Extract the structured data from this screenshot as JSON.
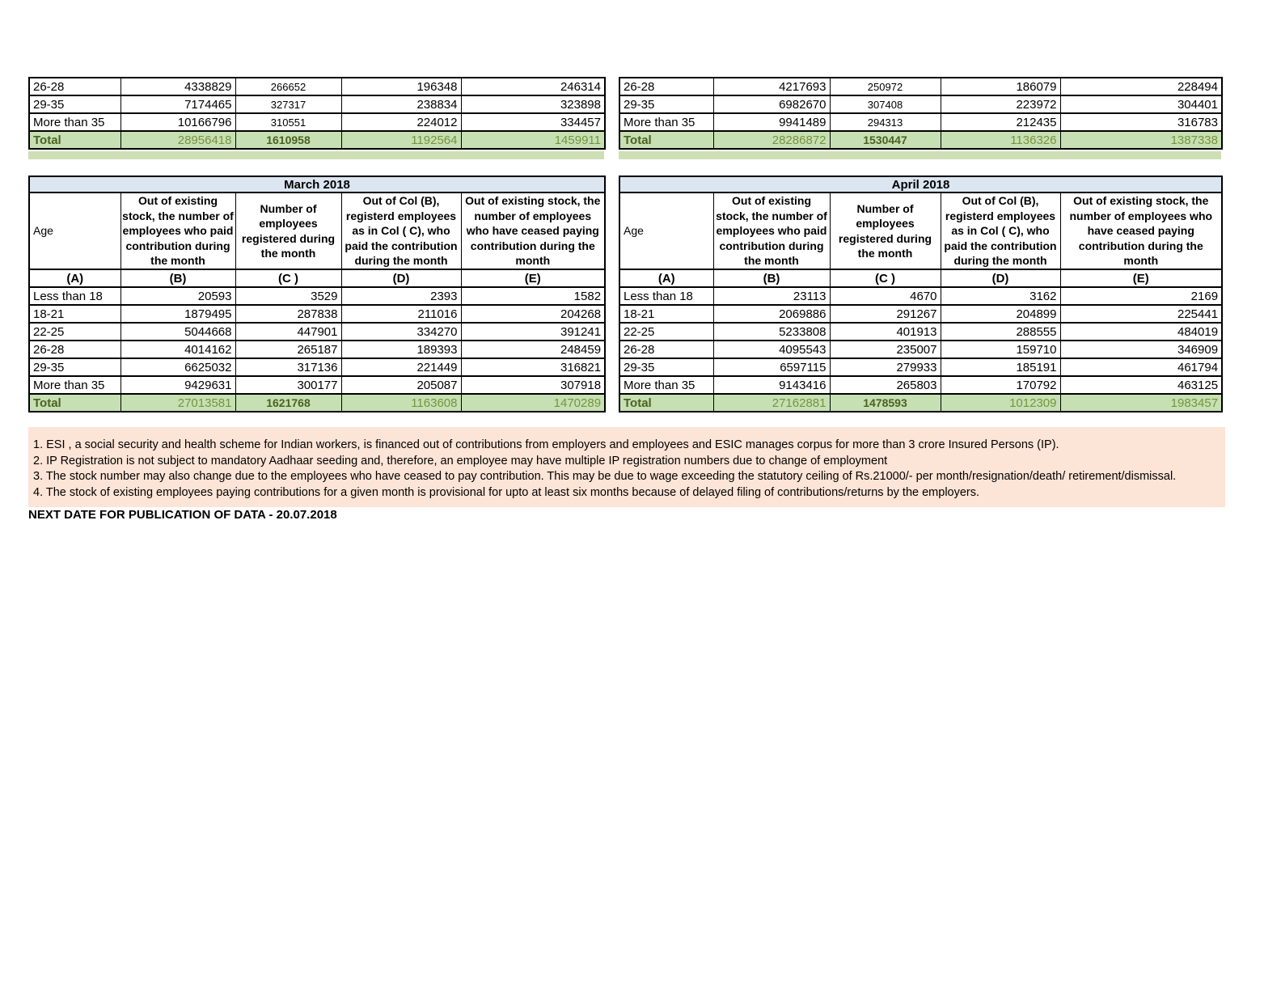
{
  "colors": {
    "title_bar_bg": "#dce6f1",
    "total_row_bg": "#c6e0b4",
    "strip_bg": "#cfdfb5",
    "notes_bg": "#fce4d6",
    "total_value_text": "#77933c",
    "total_label_text": "#4a6120",
    "border": "#000000"
  },
  "top_tables": [
    {
      "rows": [
        {
          "label": "26-28",
          "b": "4338829",
          "c": "266652",
          "d": "196348",
          "e": "246314"
        },
        {
          "label": "29-35",
          "b": "7174465",
          "c": "327317",
          "d": "238834",
          "e": "323898"
        },
        {
          "label": "More than 35",
          "b": "10166796",
          "c": "310551",
          "d": "224012",
          "e": "334457"
        },
        {
          "label": "Total",
          "b": "28956418",
          "c": "1610958",
          "d": "1192564",
          "e": "1459911",
          "total": true
        }
      ]
    },
    {
      "rows": [
        {
          "label": "26-28",
          "b": "4217693",
          "c": "250972",
          "d": "186079",
          "e": "228494"
        },
        {
          "label": "29-35",
          "b": "6982670",
          "c": "307408",
          "d": "223972",
          "e": "304401"
        },
        {
          "label": "More than 35",
          "b": "9941489",
          "c": "294313",
          "d": "212435",
          "e": "316783"
        },
        {
          "label": "Total",
          "b": "28286872",
          "c": "1530447",
          "d": "1136326",
          "e": "1387338",
          "total": true
        }
      ]
    }
  ],
  "month_tables": [
    {
      "title": "March 2018",
      "headers": {
        "a": "Age",
        "b": "Out of existing stock, the number of employees who paid contribution during the month",
        "c": "Number of employees registered during the month",
        "d": "Out of Col (B), registerd employees as in Col ( C), who paid the contribution during the month",
        "e": "Out of existing stock, the number of  employees who have ceased paying contribution during the month"
      },
      "letters": [
        "(A)",
        "(B)",
        "(C )",
        "(D)",
        "(E)"
      ],
      "rows": [
        {
          "label": "Less than 18",
          "b": "20593",
          "c": "3529",
          "d": "2393",
          "e": "1582"
        },
        {
          "label": "18-21",
          "b": "1879495",
          "c": "287838",
          "d": "211016",
          "e": "204268"
        },
        {
          "label": "22-25",
          "b": "5044668",
          "c": "447901",
          "d": "334270",
          "e": "391241"
        },
        {
          "label": "26-28",
          "b": "4014162",
          "c": "265187",
          "d": "189393",
          "e": "248459"
        },
        {
          "label": "29-35",
          "b": "6625032",
          "c": "317136",
          "d": "221449",
          "e": "316821"
        },
        {
          "label": "More than 35",
          "b": "9429631",
          "c": "300177",
          "d": "205087",
          "e": "307918"
        },
        {
          "label": "Total",
          "b": "27013581",
          "c": "1621768",
          "d": "1163608",
          "e": "1470289",
          "total": true
        }
      ]
    },
    {
      "title": "April 2018",
      "headers": {
        "a": "Age",
        "b": "Out of existing stock, the number of employees who paid contribution during the month",
        "c": "Number of employees registered during the month",
        "d": "Out of Col (B), registerd employees as in Col ( C), who paid the contribution during the month",
        "e": "Out of existing stock, the number of  employees  who have ceased paying contribution during the month"
      },
      "letters": [
        "(A)",
        "(B)",
        "(C )",
        "(D)",
        "(E)"
      ],
      "rows": [
        {
          "label": "Less than 18",
          "b": "23113",
          "c": "4670",
          "d": "3162",
          "e": "2169"
        },
        {
          "label": "18-21",
          "b": "2069886",
          "c": "291267",
          "d": "204899",
          "e": "225441"
        },
        {
          "label": "22-25",
          "b": "5233808",
          "c": "401913",
          "d": "288555",
          "e": "484019"
        },
        {
          "label": "26-28",
          "b": "4095543",
          "c": "235007",
          "d": "159710",
          "e": "346909"
        },
        {
          "label": "29-35",
          "b": "6597115",
          "c": "279933",
          "d": "185191",
          "e": "461794"
        },
        {
          "label": "More than 35",
          "b": "9143416",
          "c": "265803",
          "d": "170792",
          "e": "463125"
        },
        {
          "label": "Total",
          "b": "27162881",
          "c": "1478593",
          "d": "1012309",
          "e": "1983457",
          "total": true
        }
      ]
    }
  ],
  "notes": [
    "1. ESI , a social security and health scheme for Indian workers, is financed out of contributions from employers and employees and ESIC manages corpus for more than 3 crore Insured Persons (IP).",
    "2. IP Registration is not subject to mandatory Aadhaar seeding and, therefore, an employee may have multiple IP registration numbers due to change of employment",
    "3. The stock number may also change due to the employees who have ceased to pay contribution. This may  be due to wage exceeding the statutory ceiling of  Rs.21000/- per month/resignation/death/ retirement/dismissal.",
    "4. The stock of existing employees paying contributions for a given month is provisional for upto at least six months because of delayed filing of contributions/returns by the employers."
  ],
  "footer": "NEXT DATE FOR PUBLICATION OF DATA - 20.07.2018"
}
